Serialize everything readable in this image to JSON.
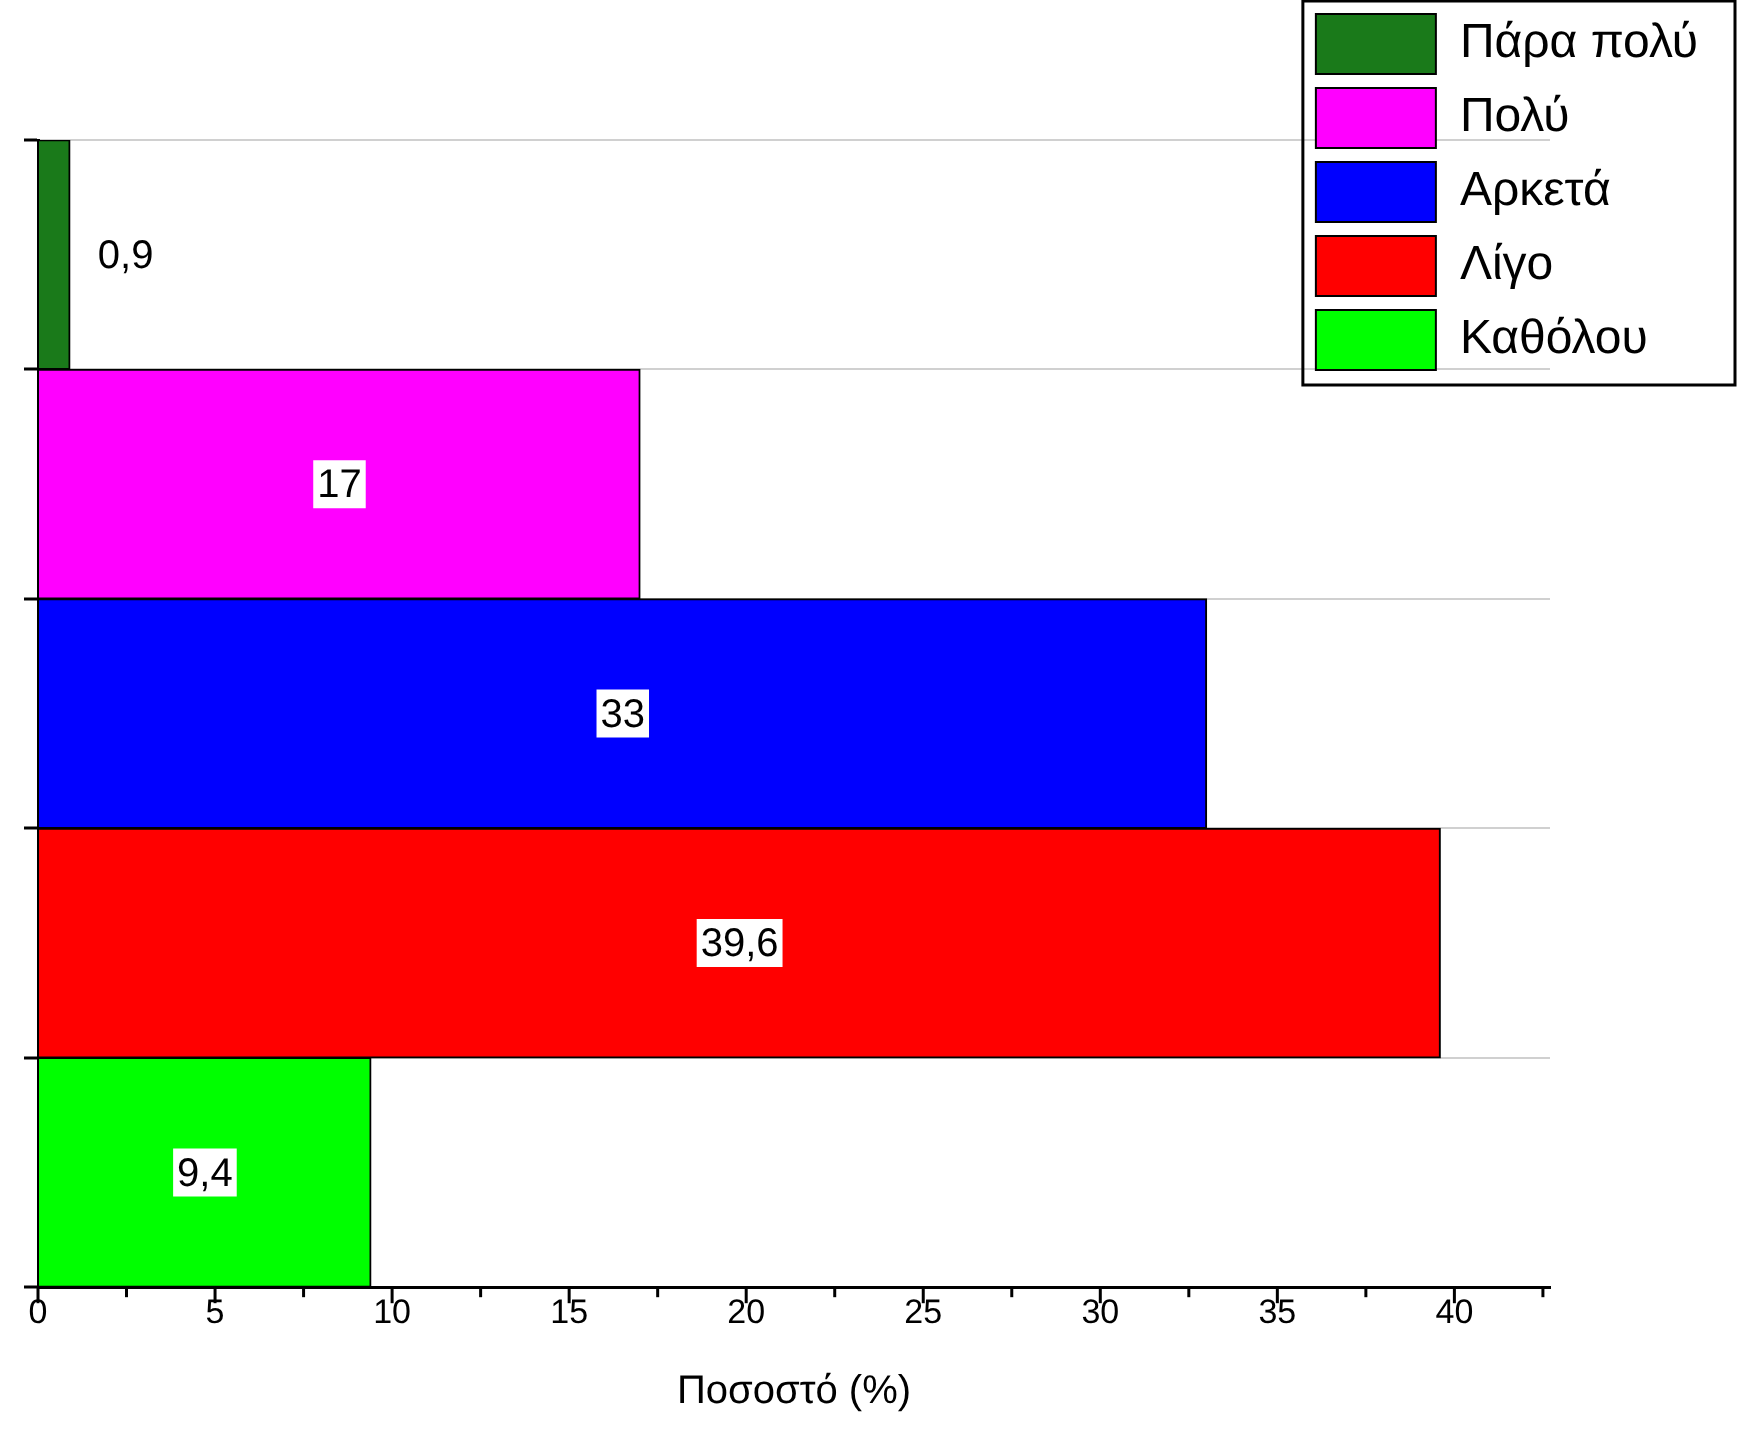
{
  "chart_data": {
    "type": "bar",
    "orientation": "horizontal",
    "categories": [
      null,
      null,
      null,
      null,
      null
    ],
    "series": [
      {
        "name": "Πάρα πολύ",
        "color": "#1a7a1a",
        "values": [
          0.9,
          null,
          null,
          null,
          null
        ],
        "value_labels": [
          "0,9",
          null,
          null,
          null,
          null
        ]
      },
      {
        "name": "Πολύ",
        "color": "#ff00ff",
        "values": [
          null,
          17,
          null,
          null,
          null
        ],
        "value_labels": [
          null,
          "17",
          null,
          null,
          null
        ]
      },
      {
        "name": "Αρκετά",
        "color": "#0000ff",
        "values": [
          null,
          null,
          33,
          null,
          null
        ],
        "value_labels": [
          null,
          null,
          "33",
          null,
          null
        ]
      },
      {
        "name": "Λίγο",
        "color": "#ff0000",
        "values": [
          null,
          null,
          null,
          39.6,
          null
        ],
        "value_labels": [
          null,
          null,
          null,
          "39,6",
          null
        ]
      },
      {
        "name": "Καθόλου",
        "color": "#00ff00",
        "values": [
          null,
          null,
          null,
          null,
          9.4
        ],
        "value_labels": [
          null,
          null,
          null,
          null,
          "9,4"
        ]
      }
    ],
    "xlabel": "Ποσοστό (%)",
    "xlim": [
      0,
      42.7
    ],
    "xticks": [
      0,
      {
        "value": 2.5,
        "label": null
      },
      5,
      {
        "value": 7.5,
        "label": null
      },
      10,
      {
        "value": 12.5,
        "label": null
      },
      15,
      {
        "value": 17.5,
        "label": null
      },
      20,
      {
        "value": 22.5,
        "label": null
      },
      25,
      {
        "value": 27.5,
        "label": null
      },
      30,
      {
        "value": 32.5,
        "label": null
      },
      35,
      {
        "value": 37.5,
        "label": null
      },
      40,
      {
        "value": 42.5,
        "label": null
      }
    ],
    "tick_labels": "x",
    "grid": "y",
    "legend": "top right"
  }
}
